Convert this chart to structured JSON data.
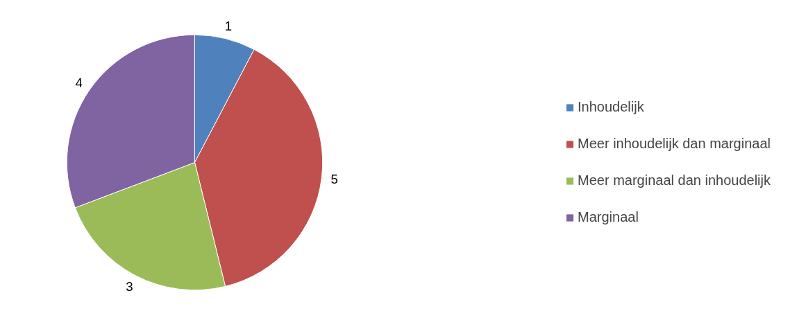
{
  "chart_data": {
    "type": "pie",
    "categories": [
      "Inhoudelijk",
      "Meer inhoudelijk dan marginaal",
      "Meer marginaal dan inhoudelijk",
      "Marginaal"
    ],
    "values": [
      1,
      5,
      3,
      4
    ],
    "colors": [
      "#4f81bd",
      "#c0504d",
      "#9bbb59",
      "#8064a2"
    ],
    "data_labels": true,
    "legend": "right"
  }
}
